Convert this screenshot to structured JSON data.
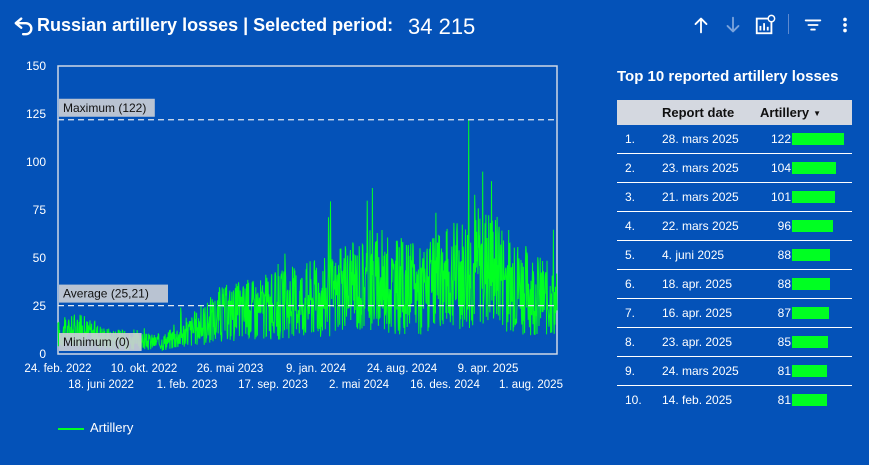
{
  "header": {
    "title": "Russian artillery losses | Selected period:",
    "total": "34 215",
    "back_icon": "undo-arrow-icon",
    "tool_icons": [
      "arrow-up-icon",
      "arrow-down-icon",
      "chart-settings-icon",
      "filter-icon",
      "more-vert-icon"
    ]
  },
  "colors": {
    "background": "#0452b8",
    "series": "#00ff22",
    "header_row": "#d4d8e0"
  },
  "chart_data": {
    "type": "line",
    "series": [
      {
        "name": "Artillery"
      }
    ],
    "x_tick_labels_top": [
      "24. feb. 2022",
      "10. okt. 2022",
      "26. mai 2023",
      "9. jan. 2024",
      "24. aug. 2024",
      "9. apr. 2025"
    ],
    "x_tick_labels_bottom": [
      "18. juni 2022",
      "1. feb. 2023",
      "17. sep. 2023",
      "2. mai 2024",
      "16. des. 2024",
      "1. aug. 2025"
    ],
    "y_ticks": [
      "150",
      "125",
      "100",
      "75",
      "50",
      "25",
      "0"
    ],
    "ylim": [
      0,
      150
    ],
    "reference_lines": [
      {
        "label": "Maximum (122)",
        "value": 122
      },
      {
        "label": "Average (25,21)",
        "value": 25.21
      },
      {
        "label": "Minimum (0)",
        "value": 0
      }
    ],
    "smoothed_profile": [
      [
        0,
        10
      ],
      [
        0.04,
        12
      ],
      [
        0.1,
        8
      ],
      [
        0.16,
        6
      ],
      [
        0.21,
        6
      ],
      [
        0.27,
        12
      ],
      [
        0.33,
        20
      ],
      [
        0.38,
        22
      ],
      [
        0.44,
        24
      ],
      [
        0.5,
        28
      ],
      [
        0.56,
        30
      ],
      [
        0.62,
        36
      ],
      [
        0.68,
        34
      ],
      [
        0.74,
        32
      ],
      [
        0.8,
        40
      ],
      [
        0.86,
        44
      ],
      [
        0.92,
        34
      ],
      [
        0.97,
        28
      ],
      [
        1,
        25
      ]
    ],
    "peak": {
      "position": 0.823,
      "value": 122
    }
  },
  "legend": {
    "label": "Artillery"
  },
  "table": {
    "title": "Top 10 reported artillery losses",
    "col_date": "Report date",
    "col_value": "Artillery",
    "sort_icon": "sort-desc-icon",
    "rows": [
      {
        "idx": "1.",
        "date": "28. mars 2025",
        "value": "122",
        "num": 122
      },
      {
        "idx": "2.",
        "date": "23. mars 2025",
        "value": "104",
        "num": 104
      },
      {
        "idx": "3.",
        "date": "21. mars 2025",
        "value": "101",
        "num": 101
      },
      {
        "idx": "4.",
        "date": "22. mars 2025",
        "value": "96",
        "num": 96
      },
      {
        "idx": "5.",
        "date": "4. juni 2025",
        "value": "88",
        "num": 88
      },
      {
        "idx": "6.",
        "date": "18. apr. 2025",
        "value": "88",
        "num": 88
      },
      {
        "idx": "7.",
        "date": "16. apr. 2025",
        "value": "87",
        "num": 87
      },
      {
        "idx": "8.",
        "date": "23. apr. 2025",
        "value": "85",
        "num": 85
      },
      {
        "idx": "9.",
        "date": "24. mars 2025",
        "value": "81",
        "num": 81
      },
      {
        "idx": "10.",
        "date": "14. feb. 2025",
        "value": "81",
        "num": 81
      }
    ]
  }
}
